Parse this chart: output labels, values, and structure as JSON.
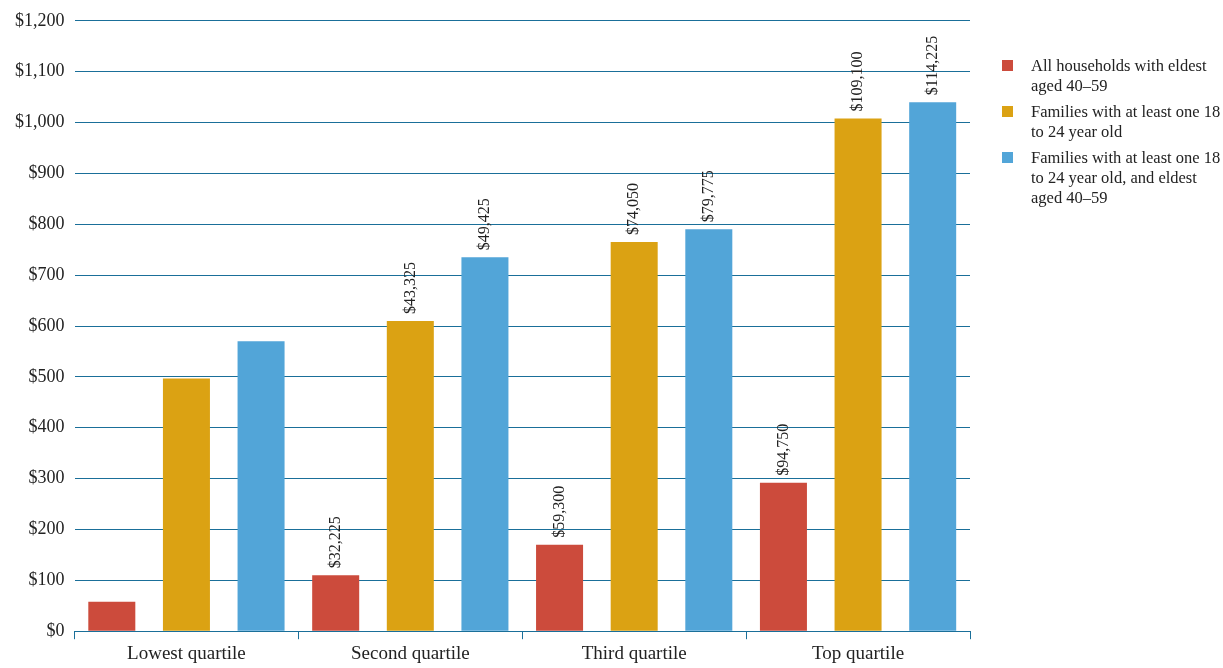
{
  "chart_data": {
    "type": "bar",
    "categories": [
      "Lowest quartile",
      "Second quartile",
      "Third quartile",
      "Top quartile"
    ],
    "series": [
      {
        "name": "All households with eldest aged 40–59",
        "color": "#cc4b3c",
        "values": [
          58,
          110,
          170,
          292
        ]
      },
      {
        "name": "Families with at least one 18 to 24 year old",
        "color": "#dba213",
        "values": [
          497,
          610,
          765,
          1008
        ]
      },
      {
        "name": "Families with at least one 18 to 24 year old, and eldest aged 40–59",
        "color": "#52a5d8",
        "values": [
          570,
          735,
          790,
          1040
        ]
      }
    ],
    "annotations": [
      "$32,225",
      "$43,325",
      "$49,425",
      "$59,300",
      "$74,050",
      "$79,775",
      "$94,750",
      "$109,100",
      "$114,225"
    ],
    "ylim": [
      0,
      1200
    ],
    "yticks": [
      {
        "value": 0,
        "label": "$0"
      },
      {
        "value": 100,
        "label": "$100"
      },
      {
        "value": 200,
        "label": "$200"
      },
      {
        "value": 300,
        "label": "$300"
      },
      {
        "value": 400,
        "label": "$400"
      },
      {
        "value": 500,
        "label": "$500"
      },
      {
        "value": 600,
        "label": "$600"
      },
      {
        "value": 700,
        "label": "$700"
      },
      {
        "value": 800,
        "label": "$800"
      },
      {
        "value": 900,
        "label": "$900"
      },
      {
        "value": 1000,
        "label": "$1,000"
      },
      {
        "value": 1100,
        "label": "$1,100"
      },
      {
        "value": 1200,
        "label": "$1,200"
      }
    ],
    "grid": "y",
    "legend": "right"
  }
}
